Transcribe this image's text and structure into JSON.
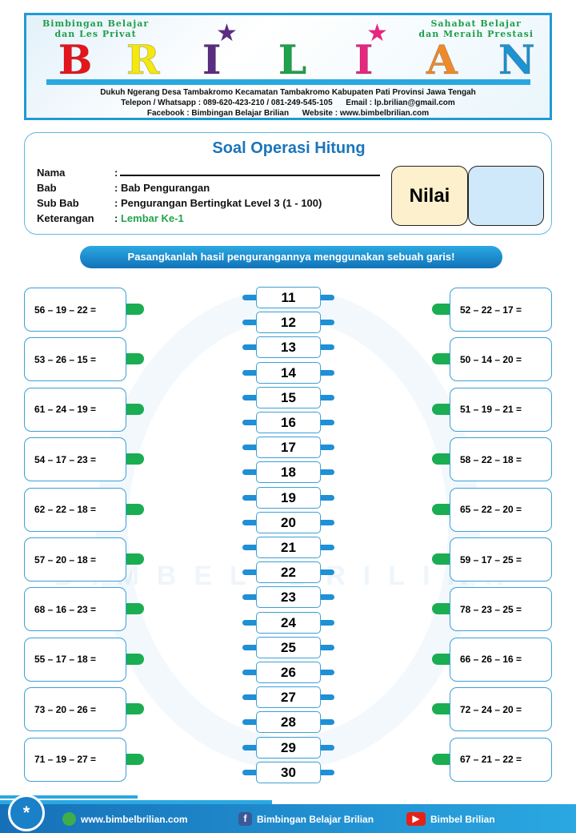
{
  "header": {
    "tagline_left": [
      "Bimbingan Belajar",
      "dan Les Privat"
    ],
    "tagline_right": [
      "Sahabat Belajar",
      "dan Meraih Prestasi"
    ],
    "logo_text": "BRILIAN",
    "logo_colors": [
      "#e8141c",
      "#f4e80f",
      "#5a2d83",
      "#1ea24a",
      "#e6267f",
      "#ef8a2a",
      "#1d93d1"
    ],
    "address": "Dukuh Ngerang Desa Tambakromo Kecamatan Tambakromo Kabupaten Pati Provinsi Jawa Tengah",
    "contact": "Telepon / Whatsapp : 089-620-423-210 / 081-249-545-105      Email : lp.brilian@gmail.com",
    "social": "Facebook : Bimbingan Belajar Brilian      Website : www.bimbelbrilian.com"
  },
  "info": {
    "title": "Soal Operasi Hitung",
    "nama_label": "Nama",
    "bab_label": "Bab",
    "bab_value": ": Bab Pengurangan",
    "subbab_label": "Sub Bab",
    "subbab_value": ": Pengurangan Bertingkat Level 3 (1 - 100)",
    "ket_label": "Keterangan",
    "ket_value": "Lembar Ke-1",
    "colon": ":",
    "nilai_label": "Nilai"
  },
  "instruction": "Pasangkanlah hasil pengurangannya menggunakan sebuah garis!",
  "left_questions": [
    "56 – 19 – 22 =",
    "53 – 26 – 15 =",
    "61 – 24 – 19 =",
    "54 – 17 – 23 =",
    "62 – 22 – 18 =",
    "57 – 20 – 18 =",
    "68 – 16 – 23 =",
    "55 – 17 – 18 =",
    "73 – 20 – 26  =",
    "71 – 19 – 27 ="
  ],
  "right_questions": [
    "52 – 22 – 17 =",
    "50 – 14 – 20 =",
    "51 – 19 – 21 =",
    "58 – 22 – 18 =",
    "65 – 22 – 20 =",
    "59 – 17 – 25 =",
    "78 – 23 – 25  =",
    "66 – 26 – 16 =",
    "72 – 24 – 20 =",
    "67 – 21 – 22 ="
  ],
  "answers": [
    "11",
    "12",
    "13",
    "14",
    "15",
    "16",
    "17",
    "18",
    "19",
    "20",
    "21",
    "22",
    "23",
    "24",
    "25",
    "26",
    "27",
    "28",
    "29",
    "30"
  ],
  "footer": {
    "asterisk": "*",
    "website": "www.bimbelbrilian.com",
    "facebook": "Bimbingan Belajar Brilian",
    "youtube": "Bimbel Brilian",
    "facebook_icon": "f",
    "youtube_icon": "▶"
  }
}
